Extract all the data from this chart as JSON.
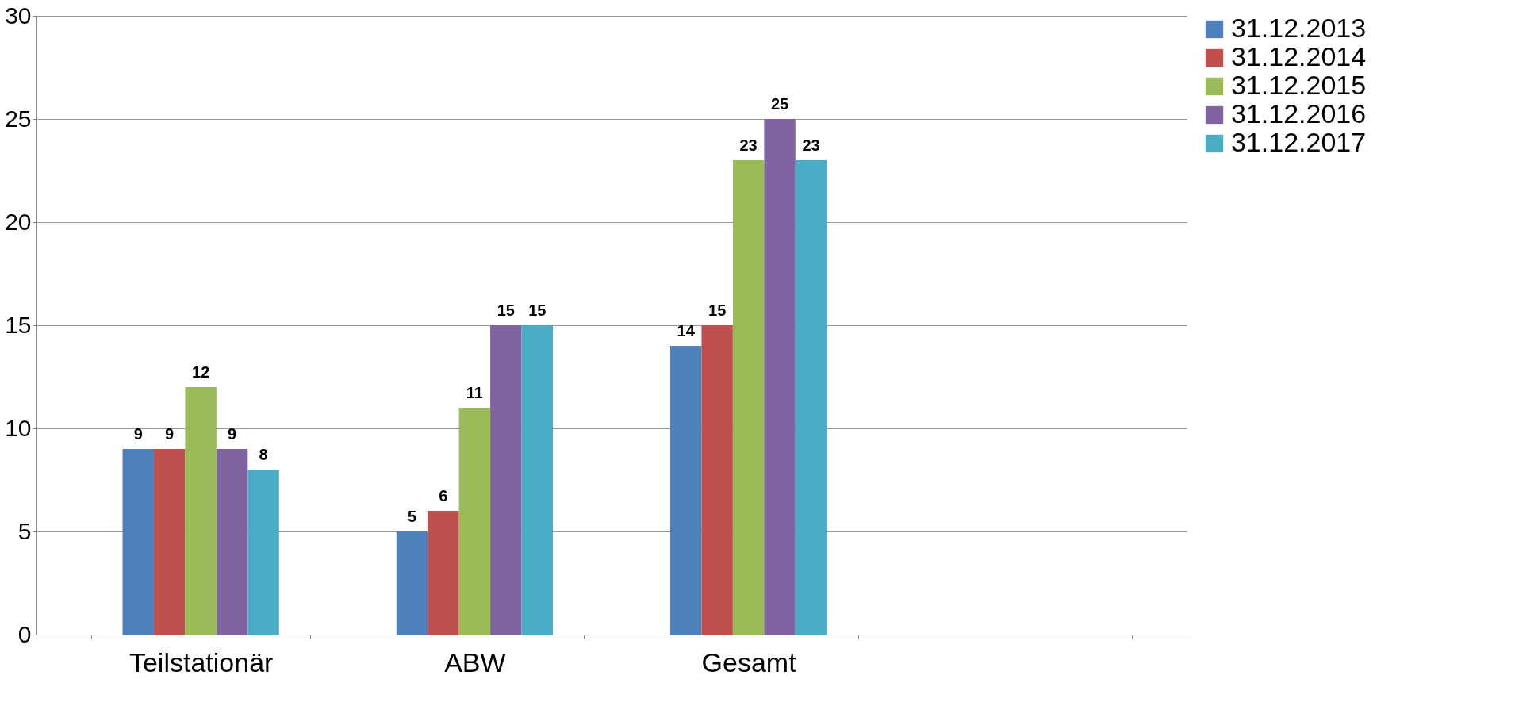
{
  "chart_data": {
    "type": "bar",
    "categories": [
      "Teilstationär",
      "ABW",
      "Gesamt",
      null
    ],
    "series": [
      {
        "name": "31.12.2013",
        "color": "#4f81bd",
        "values": [
          9,
          5,
          14,
          null
        ],
        "value_labels": [
          "9",
          "5",
          "14",
          null
        ]
      },
      {
        "name": "31.12.2014",
        "color": "#c0504d",
        "values": [
          9,
          6,
          15,
          null
        ],
        "value_labels": [
          "9",
          "6",
          "15",
          null
        ]
      },
      {
        "name": "31.12.2015",
        "color": "#9bbb59",
        "values": [
          12,
          11,
          23,
          null
        ],
        "value_labels": [
          "12",
          "11",
          "23",
          null
        ]
      },
      {
        "name": "31.12.2016",
        "color": "#8064a2",
        "values": [
          9,
          15,
          25,
          null
        ],
        "value_labels": [
          "9",
          "15",
          "25",
          null
        ]
      },
      {
        "name": "31.12.2017",
        "color": "#4bacc6",
        "values": [
          8,
          15,
          23,
          null
        ],
        "value_labels": [
          "8",
          "15",
          "23",
          null
        ]
      }
    ],
    "ylim": [
      0,
      30
    ],
    "yticks": [
      0,
      5,
      10,
      15,
      20,
      25,
      30
    ],
    "grid": "y",
    "legend": "right"
  }
}
